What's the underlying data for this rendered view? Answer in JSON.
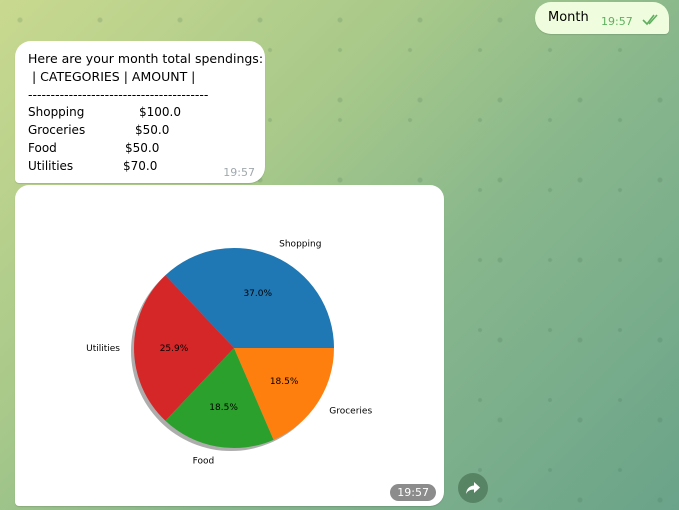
{
  "chat": {
    "outgoing": {
      "text": "Month",
      "time": "19:57"
    },
    "incoming_text": {
      "intro": "Here are your month total spendings:\n | CATEGORIES | AMOUNT |\n----------------------------------------",
      "rows": [
        {
          "category": "Shopping",
          "amount": "$100.0"
        },
        {
          "category": "Groceries",
          "amount": "$50.0"
        },
        {
          "category": "Food",
          "amount": "$50.0"
        },
        {
          "category": "Utilities",
          "amount": "$70.0"
        }
      ],
      "time": "19:57"
    },
    "incoming_image": {
      "time": "19:57"
    }
  },
  "icons": {
    "checks": "double-check-icon",
    "share": "share-arrow-icon"
  },
  "colors": {
    "Shopping": "#1f77b4",
    "Groceries": "#ff7f0e",
    "Food": "#2ca02c",
    "Utilities": "#d62728"
  },
  "chart_data": {
    "type": "pie",
    "categories": [
      "Shopping",
      "Utilities",
      "Food",
      "Groceries"
    ],
    "values": [
      37.0,
      25.9,
      18.5,
      18.5
    ],
    "labels": [
      "37.0%",
      "25.9%",
      "18.5%",
      "18.5%"
    ]
  }
}
